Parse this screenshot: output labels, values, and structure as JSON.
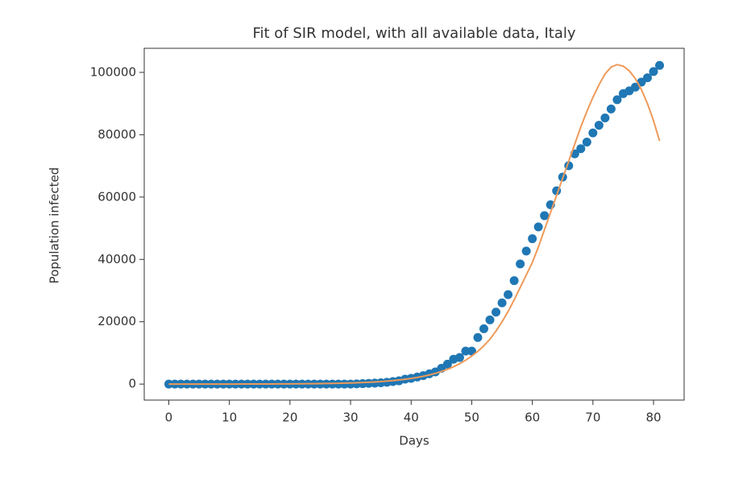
{
  "chart_data": {
    "type": "scatter",
    "title": "Fit of SIR model, with all available data, Italy",
    "x_label": "Days",
    "y_label": "Population infected",
    "x": [
      0,
      1,
      2,
      3,
      4,
      5,
      6,
      7,
      8,
      9,
      10,
      11,
      12,
      13,
      14,
      15,
      16,
      17,
      18,
      19,
      20,
      21,
      22,
      23,
      24,
      25,
      26,
      27,
      28,
      29,
      30,
      31,
      32,
      33,
      34,
      35,
      36,
      37,
      38,
      39,
      40,
      41,
      42,
      43,
      44,
      45,
      46,
      47,
      48,
      49,
      50,
      51,
      52,
      53,
      54,
      55,
      56,
      57,
      58,
      59,
      60,
      61,
      62,
      63,
      64,
      65,
      66,
      67,
      68,
      69,
      70,
      71,
      72,
      73,
      74,
      75,
      76,
      77,
      78,
      79,
      80,
      81
    ],
    "series": [
      {
        "type": "scatter",
        "color": "#1f77b4",
        "values": [
          0,
          0,
          0,
          0,
          0,
          0,
          0,
          0,
          0,
          2,
          2,
          2,
          2,
          2,
          2,
          2,
          3,
          3,
          3,
          3,
          3,
          3,
          3,
          3,
          3,
          3,
          3,
          3,
          3,
          3,
          17,
          59,
          150,
          221,
          311,
          438,
          593,
          821,
          1053,
          1577,
          1835,
          2263,
          2706,
          3296,
          3916,
          5061,
          6387,
          7985,
          8514,
          10590,
          10590,
          14955,
          17750,
          20603,
          23073,
          26062,
          28710,
          33190,
          38549,
          42681,
          46638,
          50418,
          54030,
          57521,
          62013,
          66414,
          70065,
          73880,
          75528,
          77635,
          80572,
          83049,
          85388,
          88274,
          91246,
          93187,
          94067,
          95262,
          96877,
          98273,
          100269,
          102253
        ]
      },
      {
        "type": "line",
        "color": "#ee9a5a",
        "values": [
          3,
          3,
          4,
          5,
          6,
          7,
          8,
          9,
          11,
          13,
          15,
          18,
          21,
          24,
          28,
          33,
          39,
          46,
          54,
          63,
          74,
          87,
          102,
          120,
          141,
          165,
          194,
          227,
          267,
          313,
          367,
          431,
          505,
          593,
          696,
          817,
          958,
          1125,
          1320,
          1549,
          1817,
          2133,
          2503,
          2937,
          3446,
          4044,
          4746,
          5569,
          6535,
          7669,
          9000,
          10500,
          12300,
          14400,
          17000,
          20000,
          23300,
          27000,
          31000,
          35000,
          39000,
          44000,
          49500,
          55000,
          60500,
          66000,
          71500,
          77000,
          82500,
          87500,
          92000,
          96000,
          99500,
          101700,
          102500,
          102000,
          100500,
          98000,
          94500,
          90000,
          84500,
          78000
        ]
      }
    ],
    "xlim": [
      -4.05,
      85.05
    ],
    "xticks": [
      0,
      10,
      20,
      30,
      40,
      50,
      60,
      70,
      80
    ],
    "ylim": [
      -5130,
      107730
    ],
    "yticks": [
      0,
      20000,
      40000,
      60000,
      80000,
      100000
    ],
    "grid": false
  }
}
